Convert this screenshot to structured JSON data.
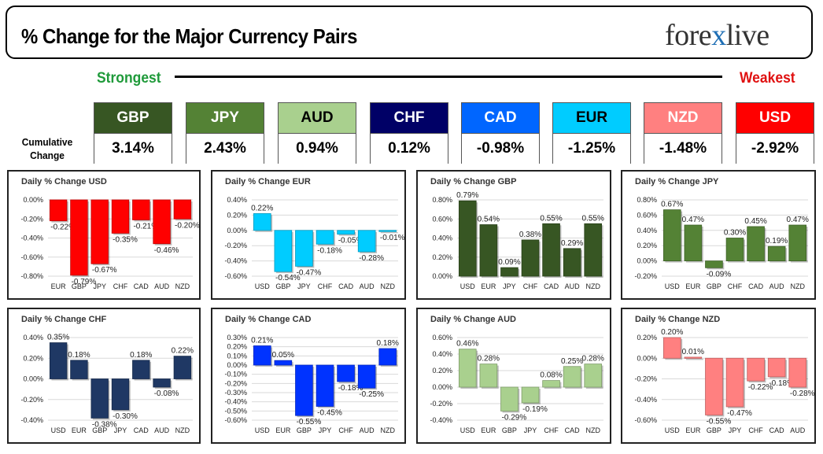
{
  "header": {
    "title": "% Change for the Major Currency Pairs",
    "logo_left": "fore",
    "logo_x": "x",
    "logo_right": "live"
  },
  "ranking": {
    "strongest_label": "Strongest",
    "weakest_label": "Weakest",
    "cumulative_label_1": "Cumulative",
    "cumulative_label_2": "Change",
    "currencies": [
      {
        "name": "GBP",
        "value": "3.14%",
        "color": "#375623",
        "text_color": "#ffffff"
      },
      {
        "name": "JPY",
        "value": "2.43%",
        "color": "#548235",
        "text_color": "#ffffff"
      },
      {
        "name": "AUD",
        "value": "0.94%",
        "color": "#a9d08e",
        "text_color": "#000000"
      },
      {
        "name": "CHF",
        "value": "0.12%",
        "color": "#000066",
        "text_color": "#ffffff"
      },
      {
        "name": "CAD",
        "value": "-0.98%",
        "color": "#0066ff",
        "text_color": "#ffffff"
      },
      {
        "name": "EUR",
        "value": "-1.25%",
        "color": "#00ccff",
        "text_color": "#000000"
      },
      {
        "name": "NZD",
        "value": "-1.48%",
        "color": "#ff8080",
        "text_color": "#ffffff"
      },
      {
        "name": "USD",
        "value": "-2.92%",
        "color": "#ff0000",
        "text_color": "#ffffff"
      }
    ]
  },
  "chart_data": [
    {
      "type": "bar",
      "title": "Daily % Change USD",
      "color": "#ff0000",
      "categories": [
        "EUR",
        "GBP",
        "JPY",
        "CHF",
        "CAD",
        "AUD",
        "NZD"
      ],
      "values": [
        -0.22,
        -0.79,
        -0.67,
        -0.35,
        -0.21,
        -0.46,
        -0.2
      ],
      "labels": [
        "-0.22%",
        "-0.79%",
        "-0.67%",
        "-0.35%",
        "-0.21%",
        "-0.46%",
        "-0.20%"
      ],
      "ylim": [
        -0.8,
        0.0
      ],
      "ticks": [
        0.0,
        -0.2,
        -0.4,
        -0.6,
        -0.8
      ],
      "tick_labels": [
        "0.00%",
        "-0.20%",
        "-0.40%",
        "-0.60%",
        "-0.80%"
      ]
    },
    {
      "type": "bar",
      "title": "Daily % Change EUR",
      "color": "#00ccff",
      "categories": [
        "USD",
        "GBP",
        "JPY",
        "CHF",
        "CAD",
        "AUD",
        "NZD"
      ],
      "values": [
        0.22,
        -0.54,
        -0.47,
        -0.18,
        -0.05,
        -0.28,
        -0.01
      ],
      "labels": [
        "0.22%",
        "-0.54%",
        "-0.47%",
        "-0.18%",
        "-0.05%",
        "-0.28%",
        "-0.01%"
      ],
      "ylim": [
        -0.6,
        0.4
      ],
      "ticks": [
        0.4,
        0.2,
        0.0,
        -0.2,
        -0.4,
        -0.6
      ],
      "tick_labels": [
        "0.40%",
        "0.20%",
        "0.00%",
        "-0.20%",
        "-0.40%",
        "-0.60%"
      ]
    },
    {
      "type": "bar",
      "title": "Daily % Change GBP",
      "color": "#375623",
      "categories": [
        "USD",
        "EUR",
        "JPY",
        "CHF",
        "CAD",
        "AUD",
        "NZD"
      ],
      "values": [
        0.79,
        0.54,
        0.09,
        0.38,
        0.55,
        0.29,
        0.55
      ],
      "labels": [
        "0.79%",
        "0.54%",
        "0.09%",
        "0.38%",
        "0.55%",
        "0.29%",
        "0.55%"
      ],
      "ylim": [
        0.0,
        0.8
      ],
      "ticks": [
        0.8,
        0.6,
        0.4,
        0.2,
        0.0
      ],
      "tick_labels": [
        "0.80%",
        "0.60%",
        "0.40%",
        "0.20%",
        "0.00%"
      ]
    },
    {
      "type": "bar",
      "title": "Daily % Change JPY",
      "color": "#548235",
      "categories": [
        "USD",
        "EUR",
        "GBP",
        "CHF",
        "CAD",
        "AUD",
        "NZD"
      ],
      "values": [
        0.67,
        0.47,
        -0.09,
        0.3,
        0.45,
        0.19,
        0.47
      ],
      "labels": [
        "0.67%",
        "0.47%",
        "-0.09%",
        "0.30%",
        "0.45%",
        "0.19%",
        "0.47%"
      ],
      "ylim": [
        -0.2,
        0.8
      ],
      "ticks": [
        0.8,
        0.6,
        0.4,
        0.2,
        0.0,
        -0.2
      ],
      "tick_labels": [
        "0.80%",
        "0.60%",
        "0.40%",
        "0.20%",
        "0.00%",
        "-0.20%"
      ]
    },
    {
      "type": "bar",
      "title": "Daily % Change CHF",
      "color": "#1f3864",
      "categories": [
        "USD",
        "EUR",
        "GBP",
        "JPY",
        "CAD",
        "AUD",
        "NZD"
      ],
      "values": [
        0.35,
        0.18,
        -0.38,
        -0.3,
        0.18,
        -0.08,
        0.22
      ],
      "labels": [
        "0.35%",
        "0.18%",
        "-0.38%",
        "-0.30%",
        "0.18%",
        "-0.08%",
        "0.22%"
      ],
      "ylim": [
        -0.4,
        0.4
      ],
      "ticks": [
        0.4,
        0.2,
        0.0,
        -0.2,
        -0.4
      ],
      "tick_labels": [
        "0.40%",
        "0.20%",
        "0.00%",
        "-0.20%",
        "-0.40%"
      ]
    },
    {
      "type": "bar",
      "title": "Daily % Change CAD",
      "color": "#0033ff",
      "categories": [
        "USD",
        "EUR",
        "GBP",
        "JPY",
        "CHF",
        "AUD",
        "NZD"
      ],
      "values": [
        0.21,
        0.05,
        -0.55,
        -0.45,
        -0.18,
        -0.25,
        0.18
      ],
      "labels": [
        "0.21%",
        "0.05%",
        "-0.55%",
        "-0.45%",
        "-0.18%",
        "-0.25%",
        "0.18%"
      ],
      "ylim": [
        -0.6,
        0.3
      ],
      "ticks": [
        0.3,
        0.2,
        0.1,
        0.0,
        -0.1,
        -0.2,
        -0.3,
        -0.4,
        -0.5,
        -0.6
      ],
      "tick_labels": [
        "0.30%",
        "0.20%",
        "0.10%",
        "0.00%",
        "-0.10%",
        "-0.20%",
        "-0.30%",
        "-0.40%",
        "-0.50%",
        "-0.60%"
      ]
    },
    {
      "type": "bar",
      "title": "Daily % Change AUD",
      "color": "#a9d08e",
      "categories": [
        "USD",
        "EUR",
        "GBP",
        "JPY",
        "CHF",
        "CAD",
        "NZD"
      ],
      "values": [
        0.46,
        0.28,
        -0.29,
        -0.19,
        0.08,
        0.25,
        0.28
      ],
      "labels": [
        "0.46%",
        "0.28%",
        "-0.29%",
        "-0.19%",
        "0.08%",
        "0.25%",
        "0.28%"
      ],
      "ylim": [
        -0.4,
        0.6
      ],
      "ticks": [
        0.6,
        0.4,
        0.2,
        0.0,
        -0.2,
        -0.4
      ],
      "tick_labels": [
        "0.60%",
        "0.40%",
        "0.20%",
        "0.00%",
        "-0.20%",
        "-0.40%"
      ]
    },
    {
      "type": "bar",
      "title": "Daily % Change NZD",
      "color": "#ff8080",
      "categories": [
        "USD",
        "EUR",
        "GBP",
        "JPY",
        "CHF",
        "CAD",
        "AUD"
      ],
      "values": [
        0.2,
        0.01,
        -0.55,
        -0.47,
        -0.22,
        -0.18,
        -0.28
      ],
      "labels": [
        "0.20%",
        "0.01%",
        "-0.55%",
        "-0.47%",
        "-0.22%",
        "-0.18%",
        "-0.28%"
      ],
      "ylim": [
        -0.6,
        0.2
      ],
      "ticks": [
        0.2,
        0.0,
        -0.2,
        -0.4,
        -0.6
      ],
      "tick_labels": [
        "0.20%",
        "0.00%",
        "-0.20%",
        "-0.40%",
        "-0.60%"
      ]
    }
  ]
}
